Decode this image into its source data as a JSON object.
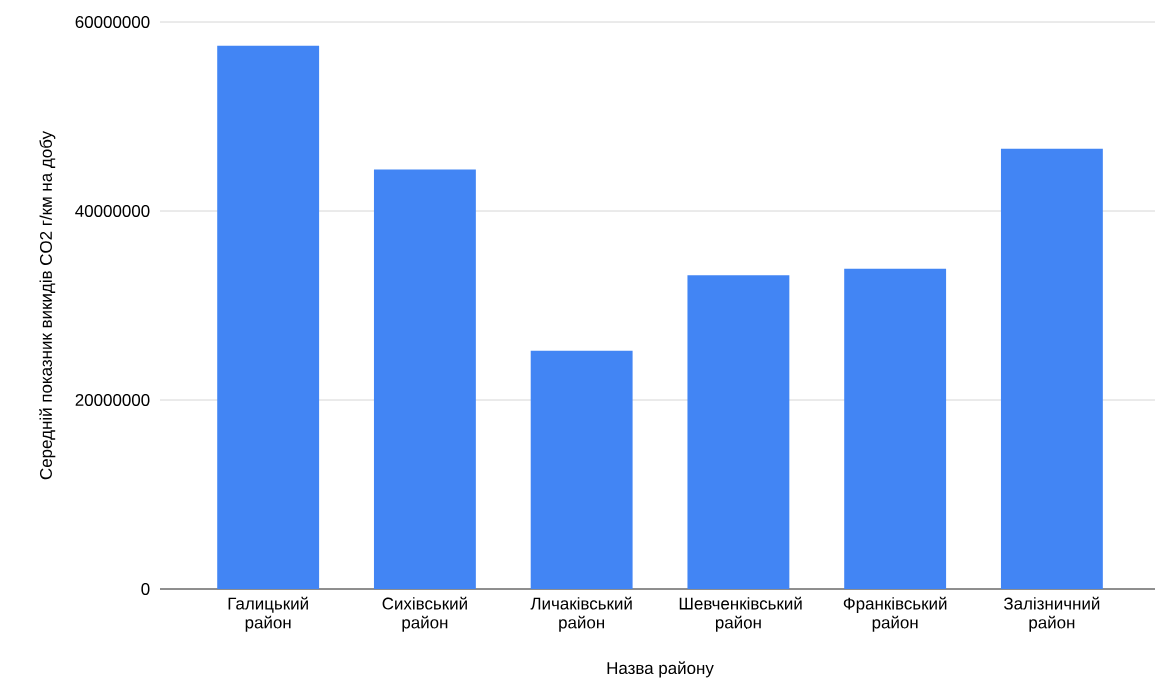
{
  "chart_data": {
    "type": "bar",
    "xlabel": "Назва району",
    "ylabel": "Середній показник викидів CO2 г/км на добу",
    "categories": [
      "Галицький район",
      "Сихівський район",
      "Личаківський район",
      "Шевченківський район",
      "Франківський район",
      "Залізничний район"
    ],
    "values": [
      57500000,
      44400000,
      25200000,
      33200000,
      33900000,
      46600000
    ],
    "color": "#4285f4",
    "ylim": [
      0,
      60000000
    ],
    "yticks": [
      0,
      20000000,
      40000000,
      60000000
    ],
    "grid": "y"
  }
}
